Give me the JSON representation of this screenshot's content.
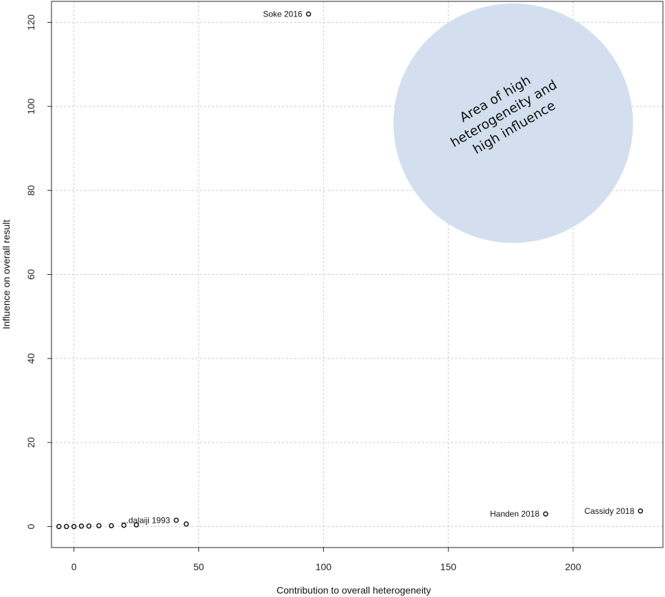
{
  "chart_data": {
    "type": "scatter",
    "xlabel": "Contribution to overall heterogeneity",
    "ylabel": "Influence on overall result",
    "xlim": [
      -9,
      236
    ],
    "ylim": [
      -5,
      125
    ],
    "xticks": [
      0,
      50,
      100,
      150,
      200
    ],
    "yticks": [
      0,
      20,
      40,
      60,
      80,
      100,
      120
    ],
    "grid": true,
    "points": [
      {
        "x": 94,
        "y": 122,
        "label": "Soke 2016"
      },
      {
        "x": 189,
        "y": 3,
        "label": "Handen 2018"
      },
      {
        "x": 227,
        "y": 3.7,
        "label": "Cassidy 2018"
      },
      {
        "x": 41,
        "y": 1.5,
        "label": "...dalaiji 1993"
      },
      {
        "x": 45,
        "y": 0.6,
        "label": ""
      },
      {
        "x": 25,
        "y": 0.4,
        "label": ""
      },
      {
        "x": 20,
        "y": 0.3,
        "label": ""
      },
      {
        "x": 15,
        "y": 0.2,
        "label": ""
      },
      {
        "x": 10,
        "y": 0.2,
        "label": ""
      },
      {
        "x": 6,
        "y": 0.1,
        "label": ""
      },
      {
        "x": 3,
        "y": 0.1,
        "label": ""
      },
      {
        "x": 0,
        "y": 0.0,
        "label": ""
      },
      {
        "x": -3,
        "y": 0.0,
        "label": ""
      },
      {
        "x": -6,
        "y": 0.0,
        "label": ""
      }
    ],
    "annotation": {
      "text_lines": [
        "Area of high",
        "heterogeneity and",
        "high influence"
      ],
      "fill": "#d3dfee",
      "center": [
        176,
        96
      ],
      "radius_x": 48,
      "radius_y": 28.5
    }
  }
}
